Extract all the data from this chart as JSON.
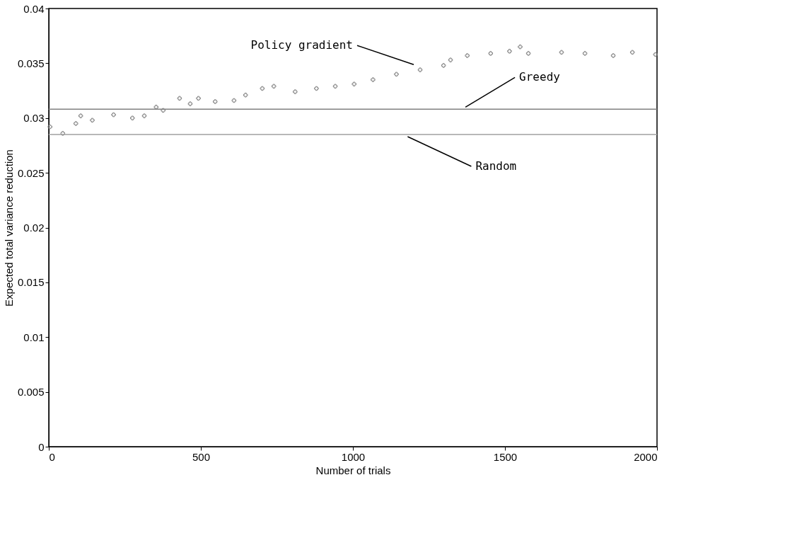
{
  "chart_data": {
    "type": "scatter",
    "xlabel": "Number of trials",
    "ylabel": "Expected total variance reduction",
    "x": [
      4,
      46,
      89,
      105,
      143,
      213,
      275,
      314,
      353,
      376,
      430,
      465,
      492,
      547,
      609,
      647,
      702,
      740,
      810,
      880,
      942,
      1004,
      1066,
      1143,
      1221,
      1298,
      1321,
      1376,
      1453,
      1515,
      1550,
      1577,
      1686,
      1763,
      1856,
      1919,
      1995
    ],
    "series": [
      {
        "color": "#808080",
        "values": [
          0.0292,
          0.0286,
          0.0295,
          0.0302,
          0.0298,
          0.0303,
          0.03,
          0.0302,
          0.031,
          0.0307,
          0.0318,
          0.0313,
          0.0318,
          0.0315,
          0.0316,
          0.0321,
          0.0327,
          0.0329,
          0.0324,
          0.0327,
          0.0329,
          0.0331,
          0.0335,
          0.034,
          0.0344,
          0.0348,
          0.0353,
          0.0357,
          0.0359,
          0.0361,
          0.0365,
          0.0359,
          0.036,
          0.0359,
          0.0357,
          0.036,
          0.0358
        ]
      }
    ],
    "marker": "cross",
    "xlim": [
      0,
      2000
    ],
    "xticks": [
      0,
      500,
      1000,
      1500,
      2000
    ],
    "ylim": [
      0,
      0.04
    ],
    "yticks": [
      0,
      0.005,
      0.01,
      0.015,
      0.02,
      0.025,
      0.03,
      0.035,
      0.04
    ],
    "ref_lines": [
      {
        "axis": "y",
        "value": 0.0308,
        "label": "Greedy",
        "color": "#808080"
      },
      {
        "axis": "y",
        "value": 0.0285,
        "label": "Random",
        "color": "#a0a0a0"
      }
    ],
    "annotations": [
      "Policy gradient"
    ],
    "grid": false
  }
}
